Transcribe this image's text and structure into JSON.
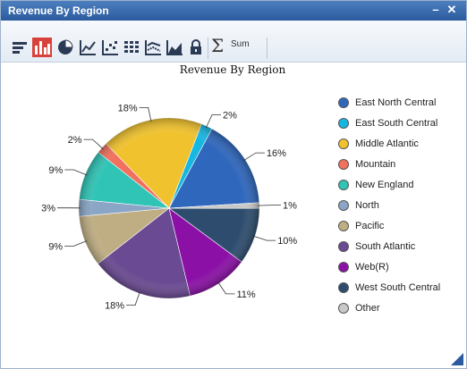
{
  "window": {
    "title": "Revenue By Region",
    "minimize_label": "–",
    "close_label": "✕"
  },
  "toolbar": {
    "tools": [
      "sort-icon",
      "bar-chart-icon",
      "pie-chart-icon",
      "line-chart-icon",
      "scatter-chart-icon",
      "table-icon",
      "multi-line-chart-icon",
      "area-chart-icon",
      "lock-icon"
    ],
    "active_tool": "bar-chart-icon",
    "sum_icon": "sigma-icon",
    "sum_label": "Sum"
  },
  "chart_data": {
    "type": "pie",
    "title": "Revenue By Region",
    "legend_position": "right",
    "slices": [
      {
        "name": "East North Central",
        "percent": 16,
        "label": "16%",
        "color": "#2f67bd"
      },
      {
        "name": "East South Central",
        "percent": 2,
        "label": "2%",
        "color": "#16b7e0"
      },
      {
        "name": "Middle Atlantic",
        "percent": 18,
        "label": "18%",
        "color": "#f0c22d"
      },
      {
        "name": "Mountain",
        "percent": 2,
        "label": "2%",
        "color": "#f2705e"
      },
      {
        "name": "New England",
        "percent": 9,
        "label": "9%",
        "color": "#2fc4b6"
      },
      {
        "name": "North",
        "percent": 3,
        "label": "3%",
        "color": "#8aa5c6"
      },
      {
        "name": "Pacific",
        "percent": 9,
        "label": "9%",
        "color": "#bfae83"
      },
      {
        "name": "South Atlantic",
        "percent": 18,
        "label": "18%",
        "color": "#6a4a92"
      },
      {
        "name": "Web(R)",
        "percent": 11,
        "label": "11%",
        "color": "#8b10a6"
      },
      {
        "name": "West South Central",
        "percent": 10,
        "label": "10%",
        "color": "#2e4d6e"
      },
      {
        "name": "Other",
        "percent": 1,
        "label": "1%",
        "color": "#c8c8c8"
      }
    ]
  }
}
